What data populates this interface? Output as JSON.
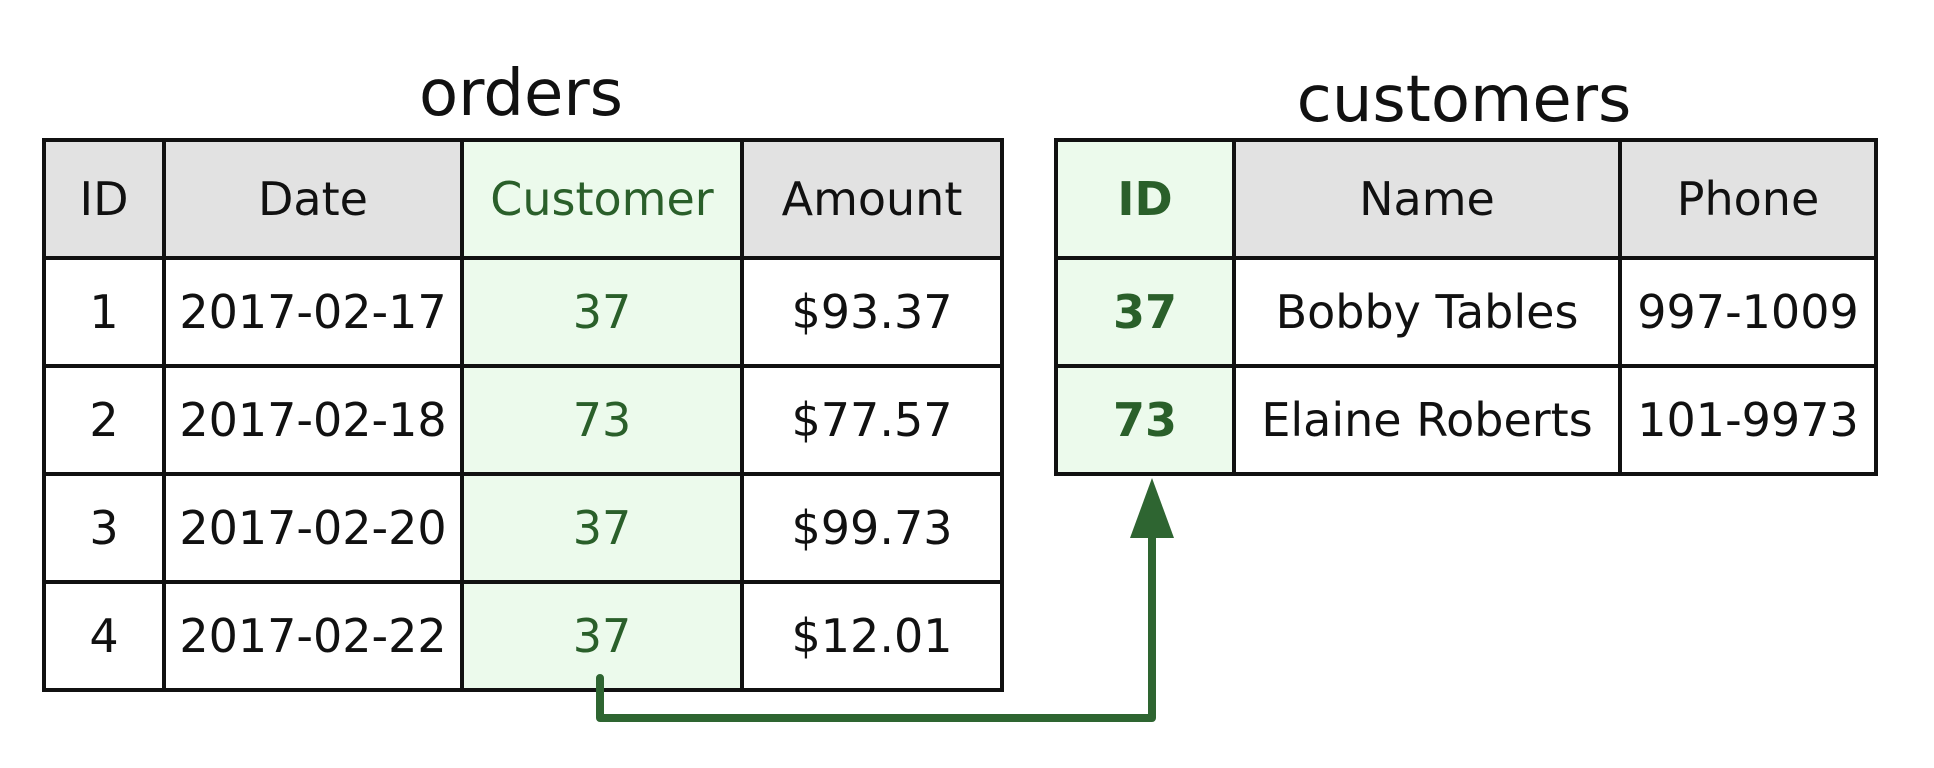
{
  "orders": {
    "title": "orders",
    "headers": [
      "ID",
      "Date",
      "Customer",
      "Amount"
    ],
    "rows": [
      [
        "1",
        "2017-02-17",
        "37",
        "$93.37"
      ],
      [
        "2",
        "2017-02-18",
        "73",
        "$77.57"
      ],
      [
        "3",
        "2017-02-20",
        "37",
        "$99.73"
      ],
      [
        "4",
        "2017-02-22",
        "37",
        "$12.01"
      ]
    ]
  },
  "customers": {
    "title": "customers",
    "headers": [
      "ID",
      "Name",
      "Phone"
    ],
    "rows": [
      [
        "37",
        "Bobby Tables",
        "997-1009"
      ],
      [
        "73",
        "Elaine Roberts",
        "101-9973"
      ]
    ]
  },
  "colors": {
    "key_fill": "#ecfaec",
    "key_text": "#2a5f2a",
    "header_fill": "#e2e2e2",
    "border": "#111111",
    "arrow": "#2e6531"
  },
  "relationship": {
    "from": "orders.Customer",
    "to": "customers.ID"
  }
}
